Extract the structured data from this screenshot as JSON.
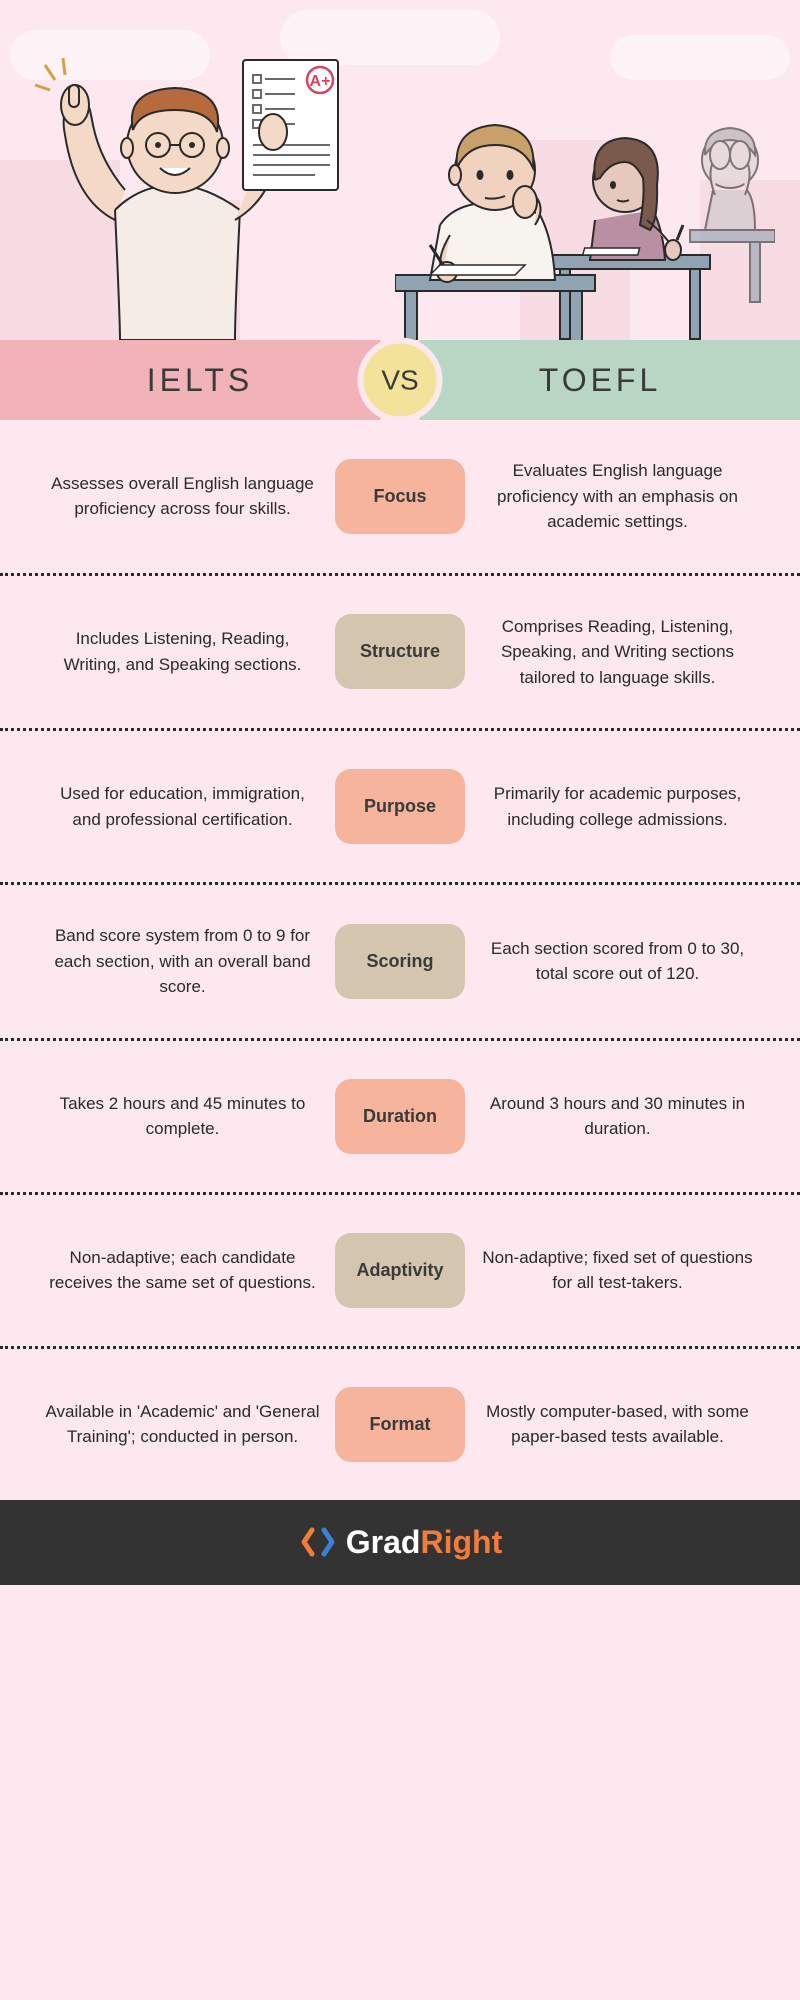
{
  "header": {
    "left_label": "IELTS",
    "right_label": "TOEFL",
    "vs_label": "VS"
  },
  "colors": {
    "bg": "#fce8ee",
    "left_bar": "#f2b3b8",
    "right_bar": "#b9d5c4",
    "vs_circle": "#f3e39a",
    "pill_peach": "#f5b49b",
    "pill_tan": "#d4c5ae",
    "footer_bg": "#333333",
    "footer_accent": "#f47b3e",
    "footer_blue": "#3b82d6"
  },
  "rows": [
    {
      "category": "Focus",
      "pill_color": "peach",
      "left": "Assesses overall English language proficiency across four skills.",
      "right": "Evaluates English language proficiency with an emphasis on academic settings."
    },
    {
      "category": "Structure",
      "pill_color": "tan",
      "left": "Includes Listening, Reading, Writing, and Speaking sections.",
      "right": "Comprises Reading, Listening, Speaking, and Writing sections tailored to language skills."
    },
    {
      "category": "Purpose",
      "pill_color": "peach",
      "left": "Used for education, immigration, and professional certification.",
      "right": "Primarily for academic purposes, including college admissions."
    },
    {
      "category": "Scoring",
      "pill_color": "tan",
      "left": "Band score system from 0 to 9 for each section, with an overall band score.",
      "right": "Each section scored from 0 to 30, total score out of 120."
    },
    {
      "category": "Duration",
      "pill_color": "peach",
      "left": "Takes 2 hours and 45 minutes to complete.",
      "right": "Around 3 hours and 30 minutes in duration."
    },
    {
      "category": "Adaptivity",
      "pill_color": "tan",
      "left": "Non-adaptive; each candidate receives the same set of questions.",
      "right": "Non-adaptive; fixed set of questions for all test-takers."
    },
    {
      "category": "Format",
      "pill_color": "peach",
      "left": "Available in 'Academic' and 'General Training'; conducted in person.",
      "right": "Mostly computer-based, with some paper-based tests available."
    }
  ],
  "footer": {
    "brand_prefix": "Grad",
    "brand_suffix": "Right"
  }
}
